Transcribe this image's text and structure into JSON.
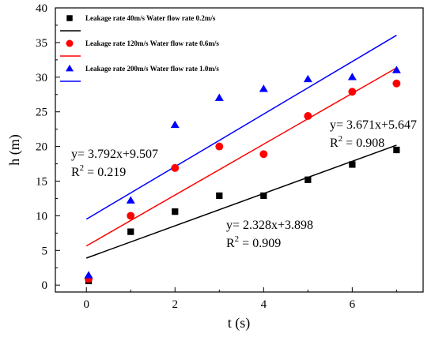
{
  "chart_data": {
    "type": "scatter",
    "title": "",
    "xlabel": "t (s)",
    "ylabel": "h (m)",
    "xlim": [
      -0.7,
      7.6
    ],
    "ylim": [
      -1,
      40
    ],
    "xticks": [
      0,
      2,
      4,
      6
    ],
    "yticks": [
      0,
      5,
      10,
      15,
      20,
      25,
      30,
      35,
      40
    ],
    "grid": false,
    "legend_position": "top-left",
    "series": [
      {
        "name": "Leakage rate 40m/s Water flow rate 0.2m/s",
        "marker": "square",
        "color": "#000000",
        "x": [
          0.05,
          1,
          2,
          3,
          4,
          5,
          6,
          7
        ],
        "y": [
          0.6,
          7.7,
          10.6,
          12.9,
          12.9,
          15.2,
          17.4,
          19.5
        ],
        "fit": {
          "slope": 2.328,
          "intercept": 3.898
        }
      },
      {
        "name": "Leakage rate 120m/s Water flow rate 0.6m/s",
        "marker": "circle",
        "color": "#ff0000",
        "x": [
          0.05,
          1,
          2,
          3,
          4,
          5,
          6,
          7
        ],
        "y": [
          0.9,
          10.0,
          16.9,
          20.0,
          18.9,
          24.4,
          27.9,
          29.1
        ],
        "fit": {
          "slope": 3.671,
          "intercept": 5.647
        }
      },
      {
        "name": "Leakage rate 200m/s Water flow rate 1.0m/s",
        "marker": "triangle",
        "color": "#0000ff",
        "x": [
          0.05,
          1,
          2,
          3,
          4,
          5,
          6,
          7
        ],
        "y": [
          1.4,
          12.2,
          23.1,
          27.0,
          28.3,
          29.7,
          30.0,
          31.0
        ],
        "fit": {
          "slope": 3.792,
          "intercept": 9.507
        }
      }
    ],
    "fit_x_range": [
      0,
      7
    ],
    "annotations": [
      {
        "equation": "y= 3.792x+9.507",
        "r2_label": "R",
        "r2_sup": "2",
        "r2_value": " = 0.219",
        "anchor": "left-upper"
      },
      {
        "equation": "y= 3.671x+5.647",
        "r2_label": "R",
        "r2_sup": "2",
        "r2_value": " = 0.908",
        "anchor": "right-upper"
      },
      {
        "equation": "y= 2.328x+3.898",
        "r2_label": "R",
        "r2_sup": "2",
        "r2_value": " = 0.909",
        "anchor": "center-lower"
      }
    ]
  }
}
